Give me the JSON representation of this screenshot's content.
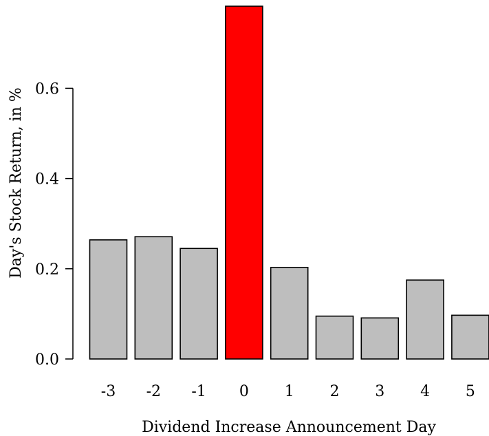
{
  "chart_data": {
    "type": "bar",
    "title": "",
    "xlabel": "Dividend Increase Announcement Day",
    "ylabel": "Day's Stock Return, in %",
    "categories": [
      "-3",
      "-2",
      "-1",
      "0",
      "1",
      "2",
      "3",
      "4",
      "5"
    ],
    "values": [
      0.264,
      0.271,
      0.245,
      0.782,
      0.203,
      0.095,
      0.091,
      0.175,
      0.097
    ],
    "y_ticks": [
      "0.0",
      "0.2",
      "0.4",
      "0.6"
    ],
    "ylim": [
      0,
      0.8
    ],
    "highlight_category": "0",
    "colors": {
      "bar": "#bebebe",
      "highlight": "#ff0000",
      "outline": "#000000"
    },
    "grid": false,
    "legend": "none"
  }
}
